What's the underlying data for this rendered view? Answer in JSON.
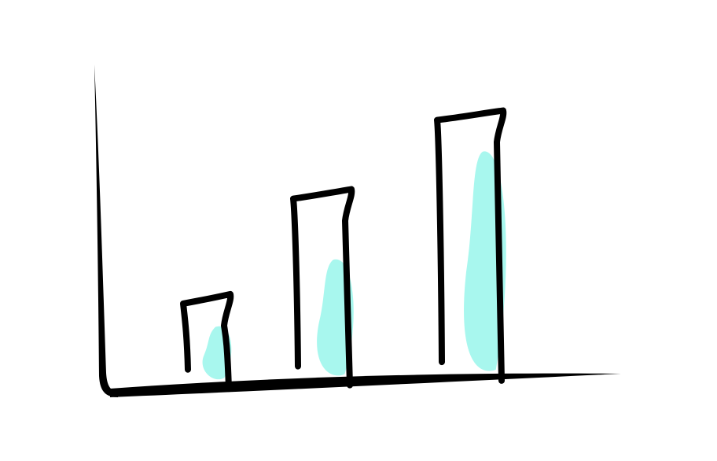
{
  "chart_data": {
    "type": "bar",
    "style": "hand-drawn sketch",
    "categories": [
      "",
      "",
      ""
    ],
    "values": [
      1,
      2.2,
      3.1
    ],
    "ylim": [
      0,
      3.6
    ],
    "grid": false,
    "legend": "none",
    "colors": {
      "outline": "#000000",
      "fill": "#a8f7ee"
    }
  }
}
